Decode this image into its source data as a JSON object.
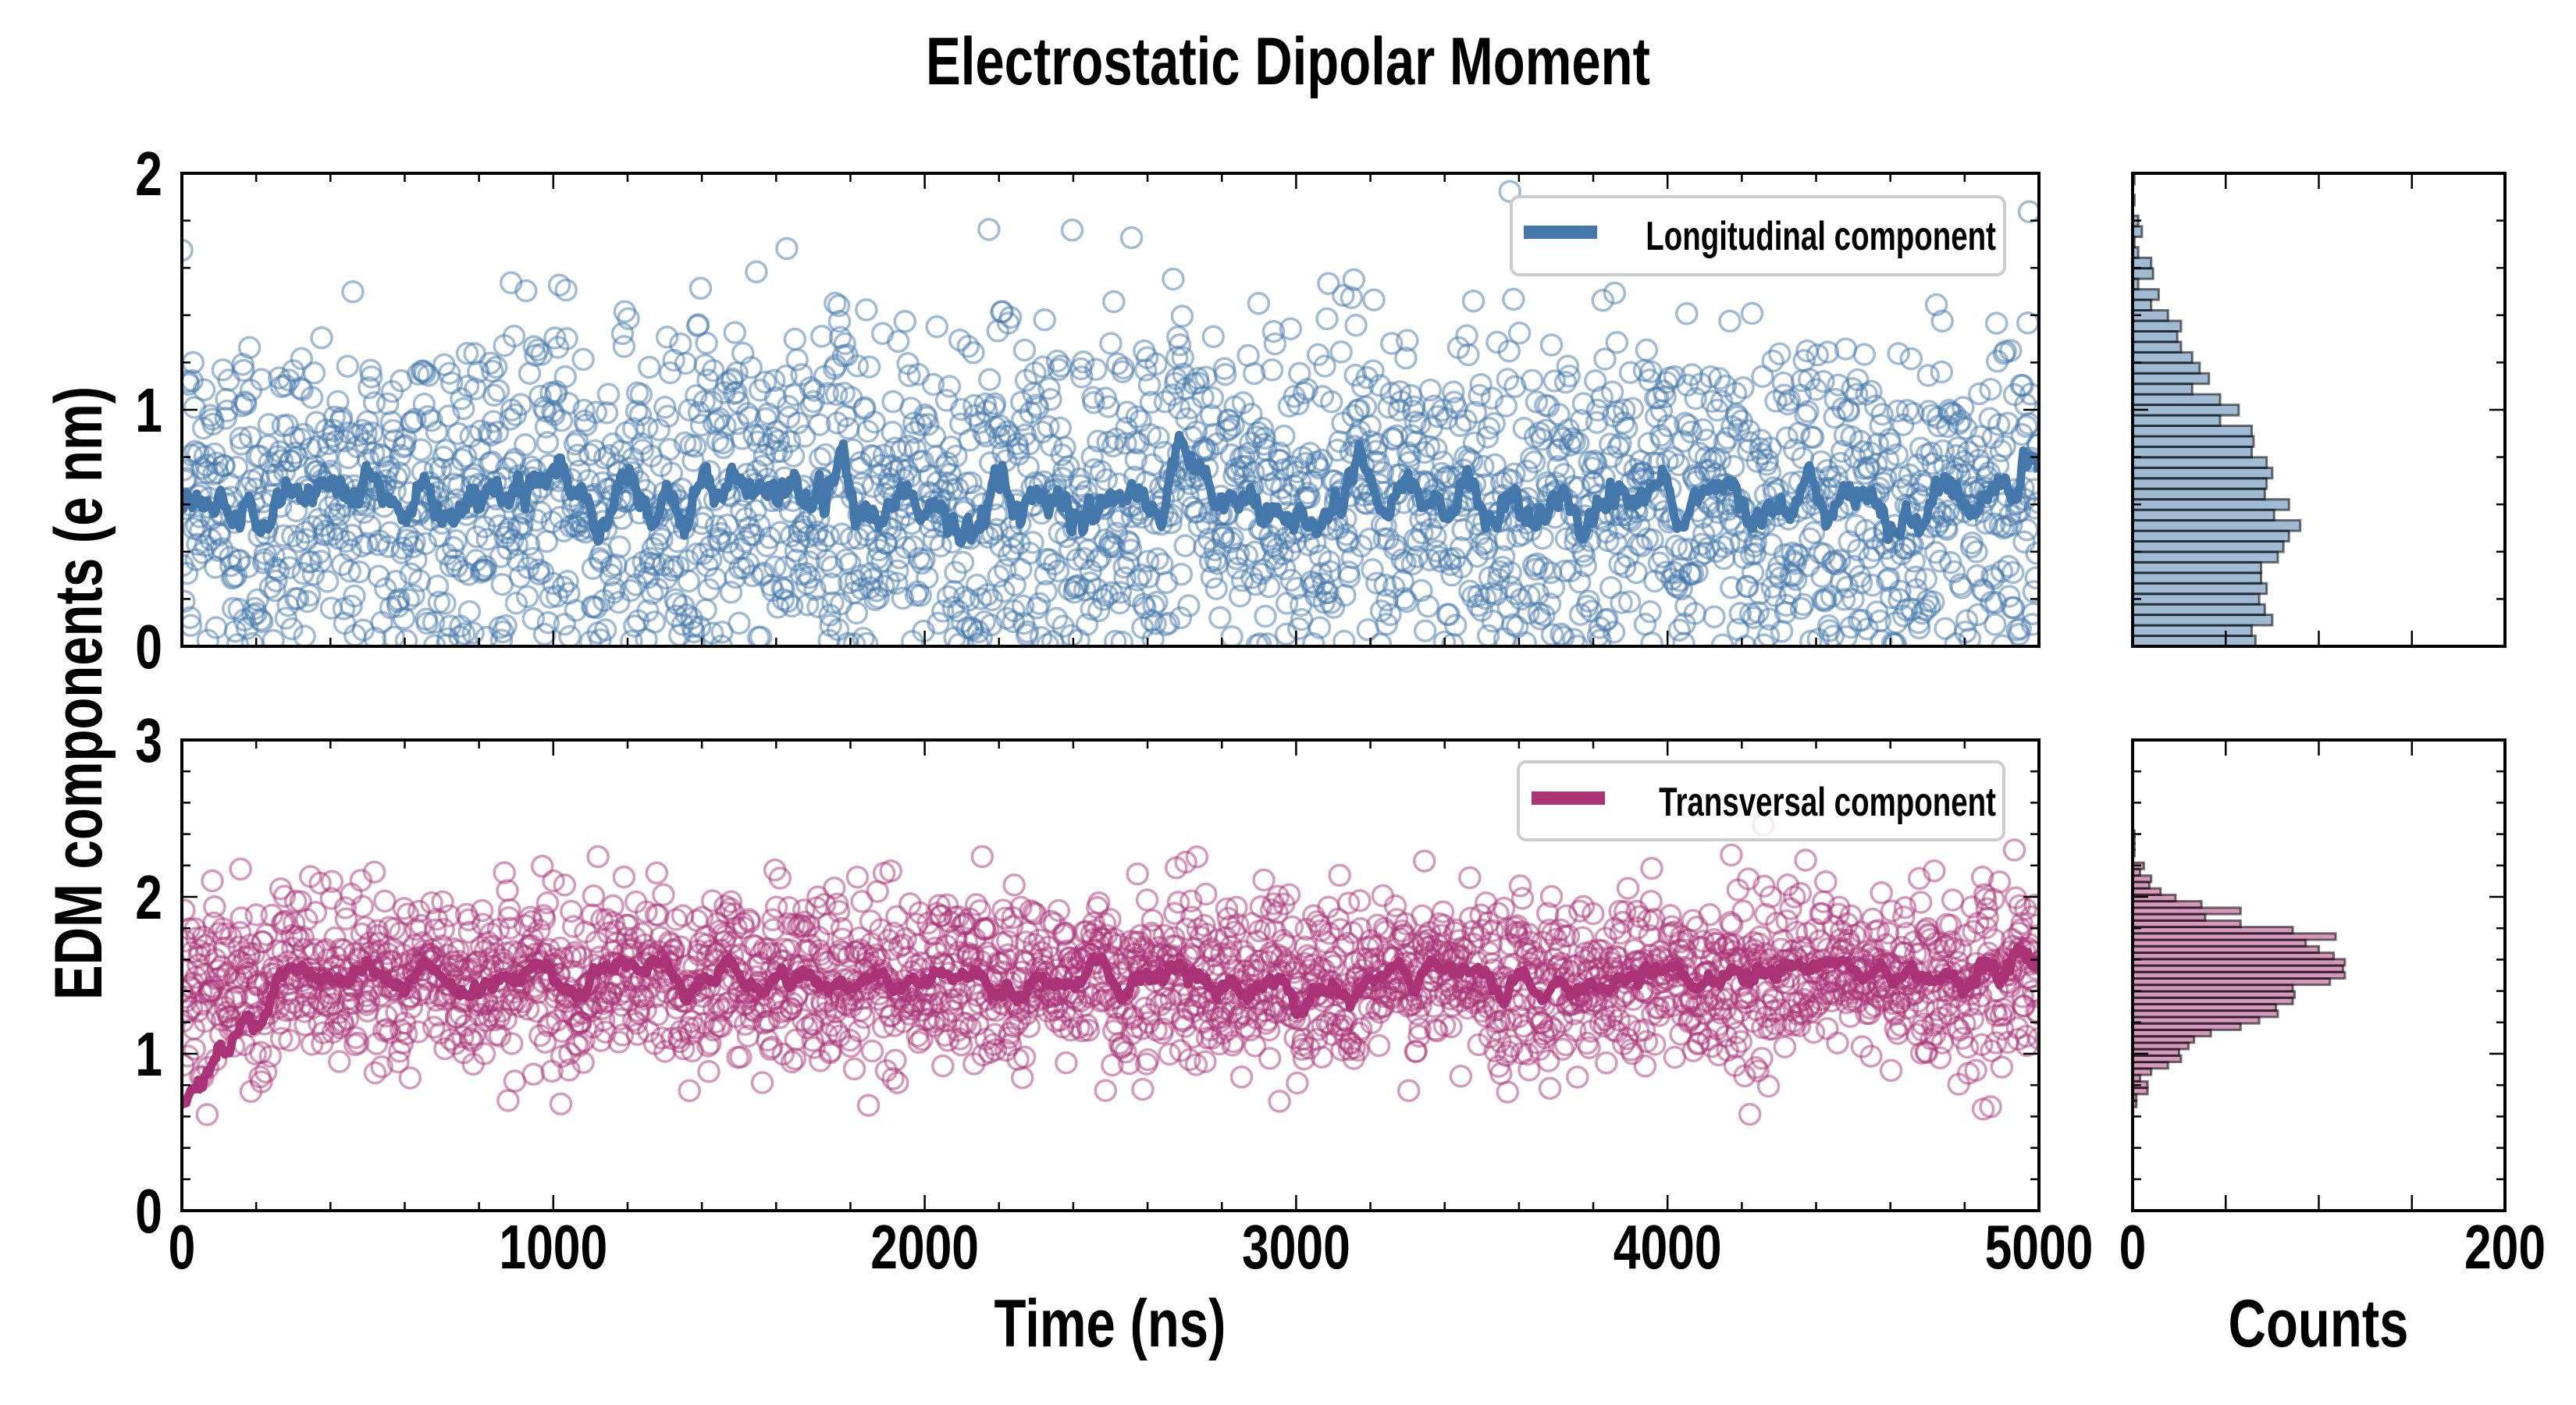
{
  "chart_data": {
    "type": "scatter",
    "title": "Electrostatic Dipolar Moment",
    "ylabel": "EDM components (e nm)",
    "panels": [
      {
        "id": "longitudinal",
        "kind": "scatter+line",
        "legend": "Longitudinal component",
        "legend_position": "top-right",
        "color": "#4477AA",
        "xlim": [
          0,
          5000
        ],
        "ylim": [
          0,
          2
        ],
        "yticks": [
          0,
          1,
          2
        ],
        "ytick_labels": [
          "0",
          "1",
          "2"
        ],
        "n_points": 2500,
        "scatter_mean": 0.62,
        "scatter_std": 0.38,
        "smoothed_trace": {
          "x": [
            0,
            250,
            500,
            750,
            1000,
            1250,
            1500,
            1750,
            2000,
            2250,
            2500,
            2750,
            3000,
            3250,
            3500,
            3750,
            4000,
            4250,
            4500,
            4750,
            5000
          ],
          "y": [
            0.55,
            0.62,
            0.65,
            0.6,
            0.62,
            0.64,
            0.6,
            0.63,
            0.56,
            0.58,
            0.62,
            0.6,
            0.55,
            0.6,
            0.61,
            0.58,
            0.6,
            0.62,
            0.64,
            0.6,
            0.7
          ]
        }
      },
      {
        "id": "transversal",
        "kind": "scatter+line",
        "legend": "Transversal component",
        "legend_position": "top-right",
        "color": "#AA3377",
        "xlim": [
          0,
          5000
        ],
        "ylim": [
          0,
          3
        ],
        "yticks": [
          0,
          1,
          2,
          3
        ],
        "ytick_labels": [
          "0",
          "1",
          "2",
          "3"
        ],
        "xlabel": "Time (ns)",
        "xticks": [
          0,
          1000,
          2000,
          3000,
          4000,
          5000
        ],
        "xtick_labels": [
          "0",
          "1000",
          "2000",
          "3000",
          "4000",
          "5000"
        ],
        "n_points": 2500,
        "scatter_mean": 1.48,
        "scatter_std": 0.27,
        "smoothed_trace": {
          "x": [
            0,
            250,
            500,
            750,
            1000,
            1250,
            1500,
            1750,
            2000,
            2250,
            2500,
            2750,
            3000,
            3250,
            3500,
            3750,
            4000,
            4250,
            4500,
            4750,
            5000
          ],
          "y": [
            0.75,
            1.45,
            1.5,
            1.45,
            1.5,
            1.52,
            1.48,
            1.45,
            1.5,
            1.42,
            1.5,
            1.48,
            1.4,
            1.48,
            1.5,
            1.45,
            1.5,
            1.52,
            1.5,
            1.5,
            1.55
          ]
        }
      }
    ],
    "histograms": [
      {
        "id": "longitudinal-hist",
        "orientation": "horizontal",
        "color": "#4477AA",
        "xlabel": "",
        "xlim": [
          0,
          200
        ],
        "ylim": [
          0,
          2
        ],
        "bin_start": 0.0,
        "bin_width": 0.0444,
        "counts": [
          66,
          64,
          75,
          71,
          68,
          72,
          69,
          69,
          78,
          81,
          84,
          90,
          76,
          84,
          71,
          72,
          75,
          72,
          64,
          65,
          64,
          47,
          57,
          47,
          32,
          41,
          36,
          32,
          26,
          24,
          26,
          19,
          10,
          14,
          3,
          11,
          10,
          3,
          1,
          5,
          3,
          0,
          1,
          0,
          1
        ]
      },
      {
        "id": "transversal-hist",
        "orientation": "horizontal",
        "color": "#AA3377",
        "xlabel": "Counts",
        "xticks": [
          0,
          200
        ],
        "xtick_labels": [
          "0",
          "200"
        ],
        "xlim": [
          0,
          200
        ],
        "ylim": [
          0,
          3
        ],
        "bin_start": 0.66,
        "bin_width": 0.041,
        "counts": [
          2,
          2,
          8,
          8,
          4,
          10,
          19,
          26,
          25,
          30,
          33,
          42,
          58,
          68,
          78,
          77,
          86,
          87,
          86,
          106,
          114,
          113,
          114,
          108,
          100,
          93,
          109,
          86,
          58,
          39,
          58,
          37,
          23,
          15,
          9,
          10,
          4,
          6,
          0,
          1,
          1,
          1,
          1
        ]
      }
    ]
  }
}
